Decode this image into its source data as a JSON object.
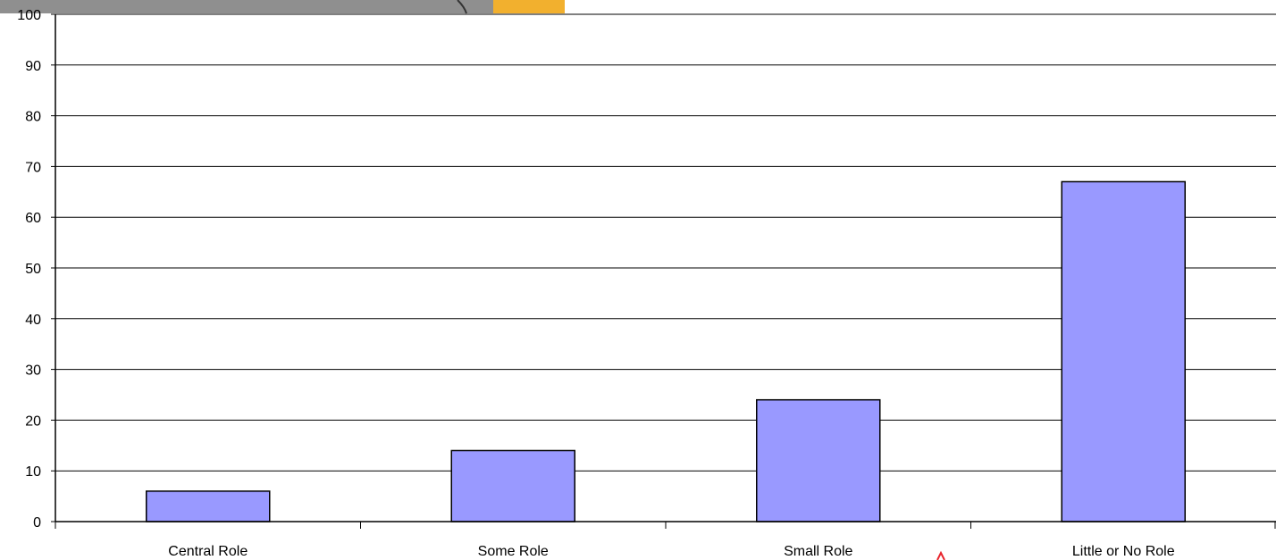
{
  "colors": {
    "bar_fill": "#9999ff",
    "bar_stroke": "#000000",
    "gridline": "#000000",
    "axis": "#000000",
    "photo_strip": "#8f8f8f",
    "photo_accent": "#f2b02e",
    "pointer": "#e8242c"
  },
  "chart_data": {
    "type": "bar",
    "title": "",
    "xlabel": "",
    "ylabel": "",
    "categories": [
      "Central Role",
      "Some Role",
      "Small Role",
      "Little or No Role"
    ],
    "values": [
      6,
      14,
      24,
      67
    ],
    "ylim": [
      0,
      100
    ],
    "yticks": [
      "0",
      "10",
      "20",
      "30",
      "40",
      "50",
      "60",
      "70",
      "80",
      "90",
      "100"
    ],
    "grid": true,
    "legend": "none"
  }
}
